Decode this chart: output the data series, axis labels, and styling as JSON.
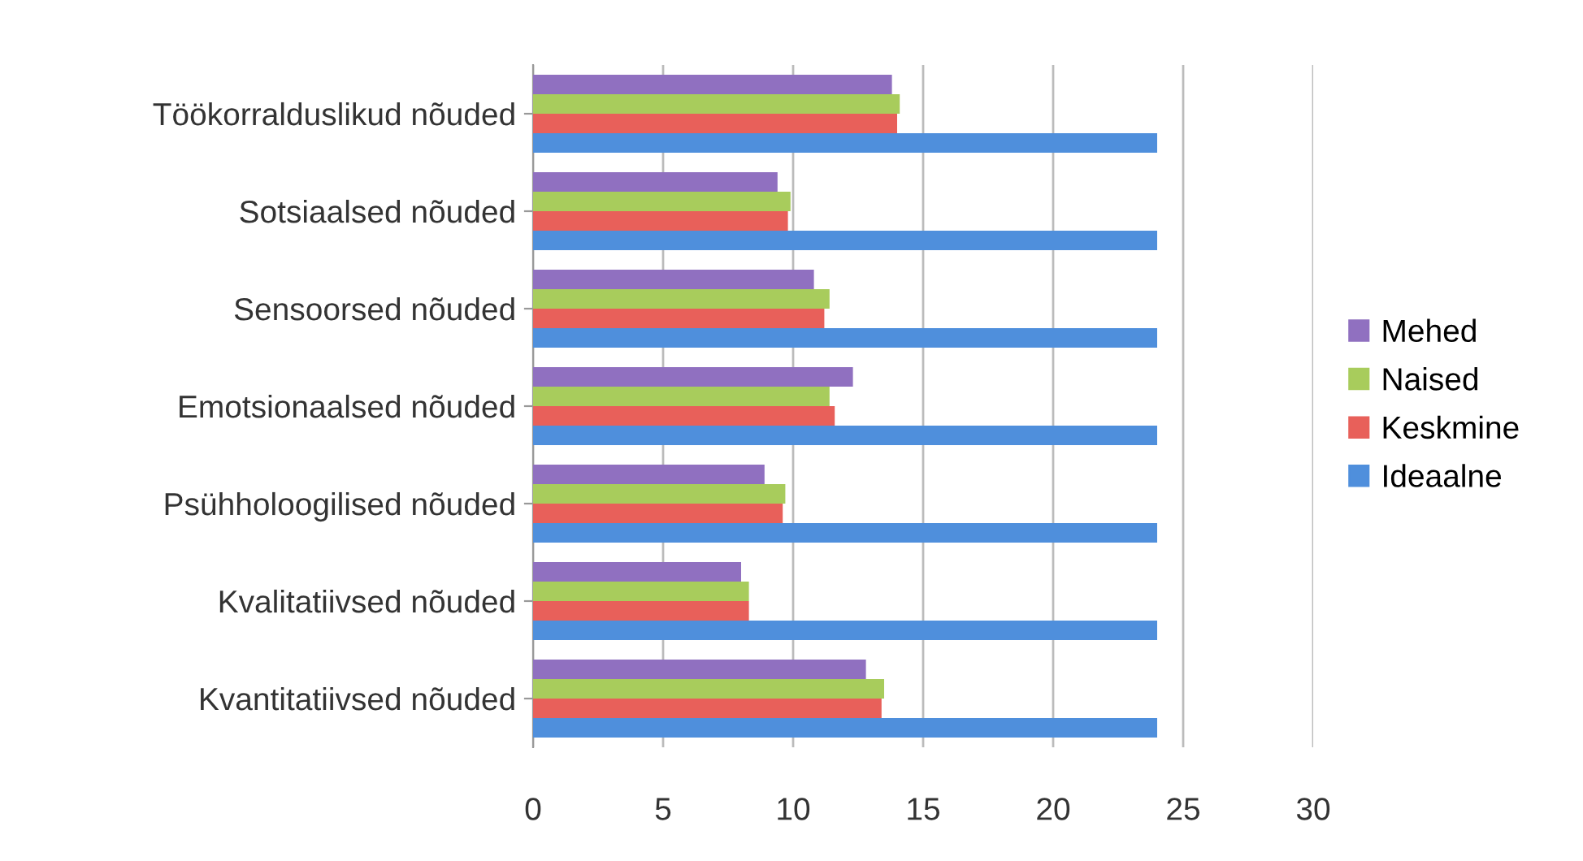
{
  "chart_data": {
    "type": "bar",
    "orientation": "horizontal",
    "categories": [
      "Töökorralduslikud nõuded",
      "Sotsiaalsed nõuded",
      "Sensoorsed nõuded",
      "Emotsionaalsed nõuded",
      "Psühholoogilised nõuded",
      "Kvalitatiivsed nõuded",
      "Kvantitatiivsed nõuded"
    ],
    "series": [
      {
        "name": "Mehed",
        "color": "#9070c0",
        "values": [
          13.8,
          9.4,
          10.8,
          12.3,
          8.9,
          8.0,
          12.8
        ]
      },
      {
        "name": "Naised",
        "color": "#a8cc5c",
        "values": [
          14.1,
          9.9,
          11.4,
          11.4,
          9.7,
          8.3,
          13.5
        ]
      },
      {
        "name": "Keskmine",
        "color": "#e8605a",
        "values": [
          14.0,
          9.8,
          11.2,
          11.6,
          9.6,
          8.3,
          13.4
        ]
      },
      {
        "name": "Ideaalne",
        "color": "#4f8fdc",
        "values": [
          24,
          24,
          24,
          24,
          24,
          24,
          24
        ]
      }
    ],
    "xlim": [
      0,
      30
    ],
    "xticks": [
      0,
      5,
      10,
      15,
      20,
      25,
      30
    ],
    "grid": "x",
    "legend": "right"
  }
}
